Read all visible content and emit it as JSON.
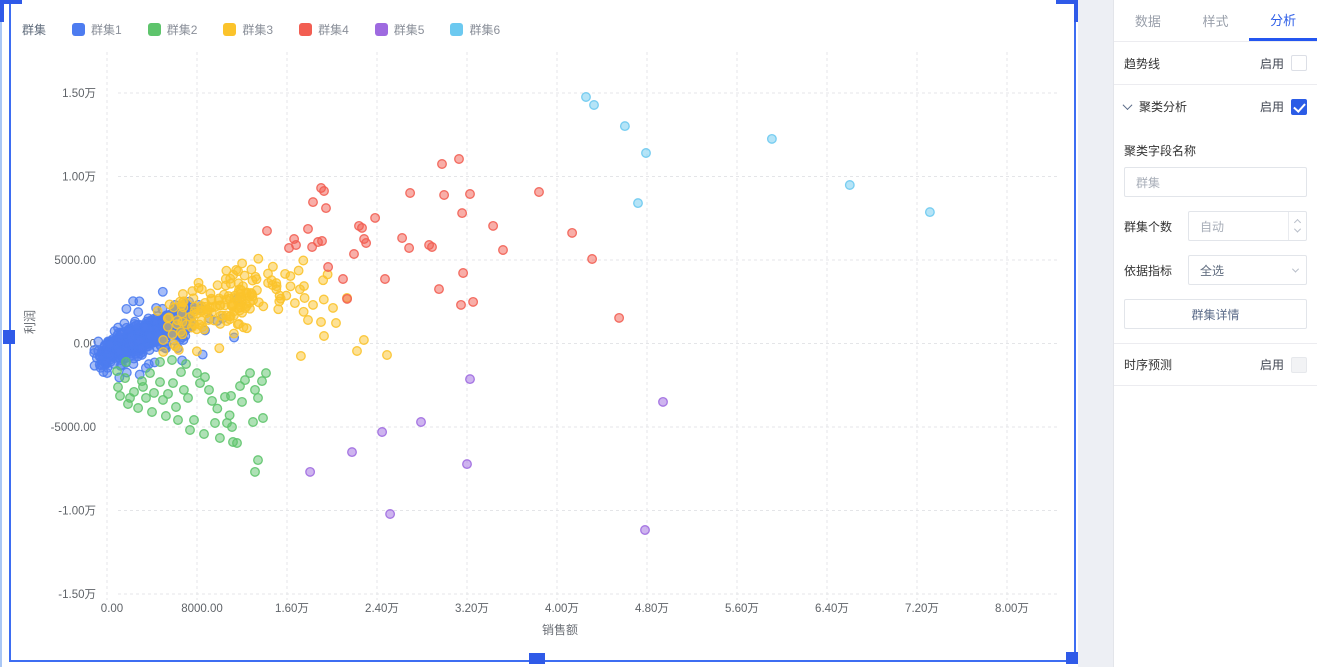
{
  "panel": {
    "tabs": [
      {
        "label": "数据",
        "active": false
      },
      {
        "label": "样式",
        "active": false
      },
      {
        "label": "分析",
        "active": true
      }
    ],
    "trend": {
      "label": "趋势线",
      "enable_label": "启用",
      "checkbox": {
        "checked": false,
        "disabled": false
      }
    },
    "cluster": {
      "label": "聚类分析",
      "enable_label": "启用",
      "checkbox": {
        "checked": true,
        "disabled": false
      },
      "field_name_label": "聚类字段名称",
      "field_name_value": "群集",
      "count_label": "群集个数",
      "count_value": "自动",
      "metric_label": "依据指标",
      "metric_value": "全选",
      "detail_button": "群集详情"
    },
    "forecast": {
      "label": "时序预测",
      "enable_label": "启用",
      "checkbox": {
        "checked": false,
        "disabled": true
      }
    }
  },
  "chart_data": {
    "type": "scatter",
    "legend_title": "群集",
    "xlabel": "销售额",
    "ylabel": "利润",
    "x_axis": {
      "ticks": [
        {
          "v": 0,
          "label": "0.00"
        },
        {
          "v": 8000,
          "label": "8000.00"
        },
        {
          "v": 16000,
          "label": "1.60万"
        },
        {
          "v": 24000,
          "label": "2.40万"
        },
        {
          "v": 32000,
          "label": "3.20万"
        },
        {
          "v": 40000,
          "label": "4.00万"
        },
        {
          "v": 48000,
          "label": "4.80万"
        },
        {
          "v": 56000,
          "label": "5.60万"
        },
        {
          "v": 64000,
          "label": "6.40万"
        },
        {
          "v": 72000,
          "label": "7.20万"
        },
        {
          "v": 80000,
          "label": "8.00万"
        }
      ]
    },
    "y_axis": {
      "ticks": [
        {
          "v": 15000,
          "label": "1.50万"
        },
        {
          "v": 10000,
          "label": "1.00万"
        },
        {
          "v": 5000,
          "label": "5000.00"
        },
        {
          "v": 0,
          "label": "0.00"
        },
        {
          "v": -5000,
          "label": "-5000.00"
        },
        {
          "v": -10000,
          "label": "-1.00万"
        },
        {
          "v": -15000,
          "label": "-1.50万"
        }
      ]
    },
    "series": [
      {
        "name": "群集1",
        "color": "#4d7cf0",
        "points": [],
        "generators": [
          {
            "seed": 101,
            "count": 520,
            "x_mean": 3200,
            "x_sd": 2100,
            "x_min": -1150,
            "x_max": 8500,
            "slope": 0.284,
            "intercept": -500,
            "noise_sd": 480,
            "y_min": -1800,
            "y_max": 2600
          },
          {
            "seed": 202,
            "count": 72,
            "x_mean": 4200,
            "x_sd": 3600,
            "x_min": -1300,
            "x_max": 12600,
            "slope": 0.284,
            "intercept": -500,
            "noise_sd": 1350,
            "y_min": -2300,
            "y_max": 3100
          }
        ]
      },
      {
        "name": "群集2",
        "color": "#5ec46c",
        "points": [
          [
            890,
            -1650
          ],
          [
            1600,
            -2070
          ],
          [
            2040,
            -3260
          ],
          [
            1160,
            -3140
          ],
          [
            1870,
            -3620
          ],
          [
            3110,
            -2250
          ],
          [
            3820,
            -1770
          ],
          [
            4180,
            -2960
          ],
          [
            4710,
            -2310
          ],
          [
            4980,
            -3380
          ],
          [
            5420,
            -3020
          ],
          [
            5870,
            -2370
          ],
          [
            6130,
            -3800
          ],
          [
            6580,
            -1710
          ],
          [
            6840,
            -2780
          ],
          [
            7200,
            -3260
          ],
          [
            7730,
            -4580
          ],
          [
            8000,
            -1770
          ],
          [
            8270,
            -2370
          ],
          [
            8710,
            -2010
          ],
          [
            9070,
            -2780
          ],
          [
            9330,
            -3440
          ],
          [
            9600,
            -4760
          ],
          [
            10040,
            -5660
          ],
          [
            10490,
            -3200
          ],
          [
            10670,
            -4760
          ],
          [
            11020,
            -3140
          ],
          [
            11110,
            -5000
          ],
          [
            11200,
            -5900
          ],
          [
            11560,
            -5960
          ],
          [
            11820,
            -2550
          ],
          [
            12270,
            -2190
          ],
          [
            12710,
            -1770
          ],
          [
            12980,
            -4700
          ],
          [
            13160,
            -2780
          ],
          [
            13160,
            -7690
          ],
          [
            13420,
            -3260
          ],
          [
            13420,
            -6980
          ],
          [
            13780,
            -2250
          ],
          [
            13870,
            -4460
          ],
          [
            14130,
            -1770
          ],
          [
            4710,
            -1110
          ],
          [
            5780,
            -990
          ],
          [
            7020,
            -1230
          ],
          [
            3470,
            -3260
          ],
          [
            2760,
            -3860
          ],
          [
            4000,
            -4100
          ],
          [
            5240,
            -4340
          ],
          [
            6310,
            -4580
          ],
          [
            7380,
            -5180
          ],
          [
            8620,
            -5420
          ],
          [
            980,
            -2610
          ],
          [
            1690,
            -1110
          ],
          [
            2400,
            -2900
          ],
          [
            3200,
            -2600
          ],
          [
            9800,
            -3900
          ],
          [
            10900,
            -4300
          ],
          [
            12000,
            -3500
          ]
        ],
        "generators": []
      },
      {
        "name": "群集3",
        "color": "#fbc32b",
        "points": [
          [
            17510,
            3440
          ],
          [
            18310,
            2310
          ],
          [
            20090,
            2130
          ],
          [
            21330,
            2730
          ],
          [
            17870,
            1410
          ],
          [
            19020,
            1290
          ],
          [
            20360,
            1230
          ],
          [
            19290,
            450
          ],
          [
            22220,
            -450
          ],
          [
            24890,
            -690
          ],
          [
            17240,
            -750
          ],
          [
            22840,
            210
          ]
        ],
        "generators": [
          {
            "seed": 303,
            "count": 165,
            "x_mean": 11200,
            "x_sd": 3400,
            "x_min": 3600,
            "x_max": 21000,
            "slope": 0.2,
            "intercept": 200,
            "noise_sd": 950,
            "y_min": -800,
            "y_max": 5600
          }
        ]
      },
      {
        "name": "群集4",
        "color": "#f25e52",
        "points": [
          [
            14220,
            6740
          ],
          [
            16180,
            5720
          ],
          [
            16630,
            6260
          ],
          [
            16800,
            5900
          ],
          [
            17870,
            6860
          ],
          [
            18230,
            5780
          ],
          [
            18760,
            6080
          ],
          [
            19110,
            6140
          ],
          [
            18310,
            8470
          ],
          [
            19030,
            9310
          ],
          [
            19290,
            9130
          ],
          [
            19470,
            8110
          ],
          [
            19650,
            4580
          ],
          [
            20980,
            3860
          ],
          [
            21340,
            2670
          ],
          [
            21960,
            5360
          ],
          [
            22400,
            7040
          ],
          [
            22670,
            6920
          ],
          [
            22850,
            6260
          ],
          [
            23030,
            6020
          ],
          [
            23830,
            7520
          ],
          [
            24710,
            3860
          ],
          [
            26230,
            6320
          ],
          [
            26850,
            5720
          ],
          [
            26940,
            9010
          ],
          [
            28630,
            5900
          ],
          [
            29510,
            3260
          ],
          [
            29780,
            10750
          ],
          [
            31290,
            11050
          ],
          [
            29960,
            8890
          ],
          [
            32270,
            8950
          ],
          [
            31560,
            7810
          ],
          [
            31650,
            4220
          ],
          [
            32540,
            2490
          ],
          [
            31470,
            2310
          ],
          [
            34320,
            7040
          ],
          [
            28890,
            5780
          ],
          [
            35200,
            5600
          ],
          [
            38400,
            9070
          ],
          [
            41340,
            6620
          ],
          [
            43120,
            5060
          ],
          [
            45520,
            1530
          ]
        ],
        "generators": []
      },
      {
        "name": "群集5",
        "color": "#9e6ae0",
        "points": [
          [
            18050,
            -7690
          ],
          [
            21780,
            -6500
          ],
          [
            24450,
            -5300
          ],
          [
            27910,
            -4700
          ],
          [
            25160,
            -10210
          ],
          [
            32000,
            -7220
          ],
          [
            32270,
            -2130
          ],
          [
            47820,
            -11170
          ],
          [
            49420,
            -3500
          ]
        ],
        "generators": []
      },
      {
        "name": "群集6",
        "color": "#6cc9f0",
        "points": [
          [
            42580,
            14760
          ],
          [
            43290,
            14280
          ],
          [
            46040,
            13020
          ],
          [
            47910,
            11410
          ],
          [
            47200,
            8410
          ],
          [
            59100,
            12250
          ],
          [
            66030,
            9490
          ],
          [
            73150,
            7870
          ]
        ],
        "generators": []
      }
    ]
  }
}
